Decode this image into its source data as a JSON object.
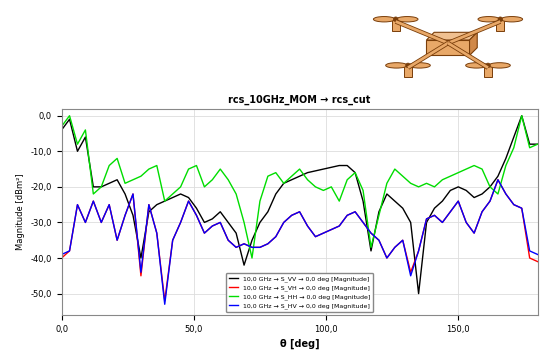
{
  "chart_data": {
    "type": "line",
    "title": "rcs_10GHz_MOM → rcs_cut",
    "x_label": "θ [deg]",
    "y_label": "Magnitude [dBm²]",
    "x": [
      0,
      3,
      6,
      9,
      12,
      15,
      18,
      21,
      24,
      27,
      30,
      33,
      36,
      39,
      42,
      45,
      48,
      51,
      54,
      57,
      60,
      63,
      66,
      69,
      72,
      75,
      78,
      81,
      84,
      87,
      90,
      93,
      96,
      99,
      102,
      105,
      108,
      111,
      114,
      117,
      120,
      123,
      126,
      129,
      132,
      135,
      138,
      141,
      144,
      147,
      150,
      153,
      156,
      159,
      162,
      165,
      168,
      171,
      174,
      177,
      180
    ],
    "series": [
      {
        "name": "10,0 GHz → S_VV → 0,0 deg [Magnitude]",
        "color": "#000000",
        "values": [
          -4,
          -1,
          -10,
          -6,
          -20,
          -20,
          -19,
          -18,
          -22,
          -28,
          -40,
          -27,
          -25,
          -24,
          -23,
          -22,
          -23,
          -26,
          -30,
          -29,
          -27,
          -30,
          -33,
          -42,
          -35,
          -30,
          -27,
          -22,
          -19,
          -18,
          -17,
          -16,
          -15.5,
          -15,
          -14.5,
          -14,
          -14,
          -16,
          -24,
          -38,
          -27,
          -22,
          -24,
          -26,
          -30,
          -50,
          -30,
          -26,
          -24,
          -21,
          -20,
          -21,
          -23,
          -22,
          -20,
          -17,
          -12,
          -6,
          0,
          -8,
          -8
        ]
      },
      {
        "name": "10,0 GHz → S_VH → 0,0 deg [Magnitude]",
        "color": "#ff0000",
        "values": [
          -40,
          -38,
          -25,
          -30,
          -24,
          -30,
          -25,
          -35,
          -28,
          -22,
          -45,
          -25,
          -33,
          -52,
          -35,
          -30,
          -24,
          -28,
          -33,
          -31,
          -30,
          -35,
          -37,
          -36,
          -37,
          -37,
          -36,
          -34,
          -30,
          -28,
          -27,
          -31,
          -34,
          -33,
          -32,
          -31,
          -28,
          -27,
          -30,
          -33,
          -35,
          -40,
          -37,
          -35,
          -44,
          -38,
          -29,
          -28,
          -30,
          -27,
          -24,
          -30,
          -33,
          -27,
          -24,
          -18,
          -22,
          -25,
          -26,
          -40,
          -41
        ]
      },
      {
        "name": "10,0 GHz → S_HH → 0,0 deg [Magnitude]",
        "color": "#00dd00",
        "values": [
          -3,
          0,
          -8,
          -4,
          -22,
          -20,
          -14,
          -12,
          -19,
          -18,
          -17,
          -15,
          -14,
          -24,
          -22,
          -20,
          -15,
          -14,
          -20,
          -18,
          -15,
          -18,
          -22,
          -30,
          -40,
          -24,
          -17,
          -16,
          -19,
          -17,
          -15,
          -18,
          -20,
          -21,
          -20,
          -24,
          -18,
          -16,
          -21,
          -37,
          -28,
          -19,
          -15,
          -17,
          -19,
          -20,
          -19,
          -20,
          -18,
          -17,
          -16,
          -15,
          -14,
          -15,
          -20,
          -22,
          -14,
          -9,
          0,
          -9,
          -8
        ]
      },
      {
        "name": "10,0 GHz → S_HV → 0,0 deg [Magnitude]",
        "color": "#0000ff",
        "values": [
          -39,
          -38,
          -25,
          -30,
          -24,
          -30,
          -25,
          -35,
          -28,
          -22,
          -44,
          -25,
          -33,
          -53,
          -35,
          -30,
          -24,
          -28,
          -33,
          -31,
          -30,
          -35,
          -37,
          -36,
          -37,
          -37,
          -36,
          -34,
          -30,
          -28,
          -27,
          -31,
          -34,
          -33,
          -32,
          -31,
          -28,
          -27,
          -30,
          -33,
          -35,
          -40,
          -37,
          -35,
          -45,
          -38,
          -29,
          -28,
          -30,
          -27,
          -24,
          -30,
          -33,
          -27,
          -24,
          -18,
          -22,
          -25,
          -26,
          -38,
          -39
        ]
      }
    ],
    "xlim": [
      0,
      180
    ],
    "xticks": [
      {
        "value": 0,
        "label": "0,0"
      },
      {
        "value": 50,
        "label": "50,0"
      },
      {
        "value": 100,
        "label": "100,0"
      },
      {
        "value": 150,
        "label": "150,0"
      }
    ],
    "ylim": [
      -56,
      2
    ],
    "yticks": [
      {
        "value": -50,
        "label": "-50,0"
      },
      {
        "value": -40,
        "label": "-40,0"
      },
      {
        "value": -30,
        "label": "-30,0"
      },
      {
        "value": -20,
        "label": "-20,0"
      },
      {
        "value": -10,
        "label": "-10,0"
      },
      {
        "value": 0,
        "label": "0,0"
      }
    ],
    "grid": true,
    "legend": "lower center"
  }
}
